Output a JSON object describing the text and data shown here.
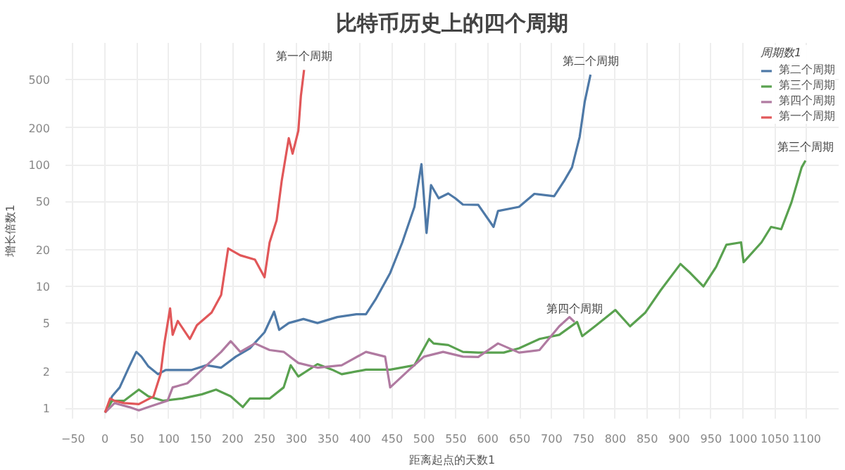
{
  "chart_data": {
    "type": "line",
    "title": "比特币历史上的四个周期",
    "xlabel": "距离起点的天数1",
    "ylabel": "增长倍数1",
    "legend_title": "周期数1",
    "log": "y",
    "grid": true,
    "legend": "top right",
    "line_style": "solid",
    "marker": "none",
    "xlim": [
      -62,
      1150
    ],
    "ylim": [
      0.82,
      1000
    ],
    "xticks": [
      -50,
      0,
      50,
      100,
      150,
      200,
      250,
      300,
      350,
      400,
      450,
      500,
      550,
      600,
      650,
      700,
      750,
      800,
      850,
      900,
      950,
      1000,
      1050,
      1100
    ],
    "yticks": [
      1,
      2,
      5,
      10,
      20,
      50,
      100,
      200,
      500
    ],
    "series": [
      {
        "name": "第二个周期",
        "color": "#4e79a7",
        "x": [
          0,
          11,
          23,
          38,
          49,
          57,
          68,
          83,
          95,
          114,
          136,
          159,
          182,
          205,
          227,
          250,
          265,
          273,
          288,
          311,
          333,
          364,
          394,
          409,
          424,
          447,
          466,
          485,
          496,
          504,
          511,
          523,
          538,
          549,
          561,
          585,
          609,
          616,
          649,
          673,
          704,
          720,
          732,
          744,
          752,
          761
        ],
        "values": [
          0.92,
          1.25,
          1.48,
          2.2,
          2.9,
          2.65,
          2.2,
          1.9,
          2.06,
          2.06,
          2.06,
          2.25,
          2.15,
          2.65,
          3.1,
          4.2,
          6.2,
          4.4,
          5,
          5.4,
          5.0,
          5.6,
          5.9,
          5.9,
          7.8,
          12.9,
          23,
          45,
          101,
          27.5,
          68,
          53,
          58,
          53,
          47,
          46.8,
          30.8,
          41.6,
          45,
          57.6,
          55,
          74,
          95,
          169,
          330,
          549
        ]
      },
      {
        "name": "第三个周期",
        "color": "#59a14f",
        "x": [
          0,
          11,
          30,
          53,
          68,
          91,
          121,
          152,
          174,
          197,
          216,
          227,
          258,
          280,
          291,
          303,
          333,
          356,
          371,
          409,
          447,
          485,
          508,
          515,
          538,
          561,
          585,
          625,
          649,
          681,
          712,
          740,
          748,
          768,
          800,
          823,
          847,
          871,
          902,
          918,
          938,
          958,
          974,
          997,
          1001,
          1029,
          1044,
          1060,
          1076,
          1092,
          1098
        ],
        "values": [
          0.92,
          1.15,
          1.15,
          1.42,
          1.25,
          1.15,
          1.2,
          1.3,
          1.42,
          1.25,
          1.02,
          1.2,
          1.2,
          1.48,
          2.25,
          1.82,
          2.3,
          2.07,
          1.9,
          2.07,
          2.07,
          2.25,
          3.7,
          3.4,
          3.3,
          2.9,
          2.86,
          2.86,
          3.1,
          3.7,
          4.0,
          5.1,
          3.9,
          4.7,
          6.4,
          4.7,
          6.1,
          9.3,
          15.3,
          12.8,
          10,
          14.5,
          22,
          23,
          15.8,
          23,
          30.8,
          29.5,
          49,
          95,
          108
        ]
      },
      {
        "name": "第四个周期",
        "color": "#b07aa1",
        "x": [
          0,
          15,
          38,
          53,
          68,
          98,
          106,
          129,
          152,
          182,
          197,
          212,
          235,
          258,
          280,
          303,
          333,
          371,
          409,
          439,
          447,
          477,
          500,
          530,
          561,
          585,
          616,
          649,
          681,
          712,
          728,
          736
        ],
        "values": [
          0.92,
          1.1,
          1.02,
          0.96,
          1.02,
          1.15,
          1.48,
          1.6,
          2.07,
          2.9,
          3.55,
          2.9,
          3.4,
          3.0,
          2.9,
          2.35,
          2.15,
          2.25,
          2.9,
          2.65,
          1.48,
          2.07,
          2.65,
          2.9,
          2.65,
          2.63,
          3.4,
          2.86,
          3.0,
          4.7,
          5.6,
          5.1
        ]
      },
      {
        "name": "第一个周期",
        "color": "#e15759",
        "x": [
          0,
          8,
          15,
          30,
          53,
          76,
          87,
          93,
          102,
          106,
          114,
          133,
          144,
          167,
          182,
          193,
          212,
          235,
          250,
          258,
          269,
          277,
          288,
          294,
          303,
          307,
          312
        ],
        "values": [
          0.92,
          1.2,
          1.15,
          1.1,
          1.08,
          1.25,
          1.9,
          3.4,
          6.6,
          4.0,
          5.2,
          3.7,
          4.8,
          6.1,
          8.5,
          20.5,
          18,
          16.6,
          11.9,
          23,
          35,
          74,
          165,
          123,
          190,
          366,
          600
        ]
      }
    ],
    "annotations": [
      {
        "text": "第一个周期",
        "x": 312,
        "y": 600
      },
      {
        "text": "第二个周期",
        "x": 761,
        "y": 549
      },
      {
        "text": "第三个周期",
        "x": 1098,
        "y": 108
      },
      {
        "text": "第四个周期",
        "x": 736,
        "y": 5.1
      }
    ]
  }
}
